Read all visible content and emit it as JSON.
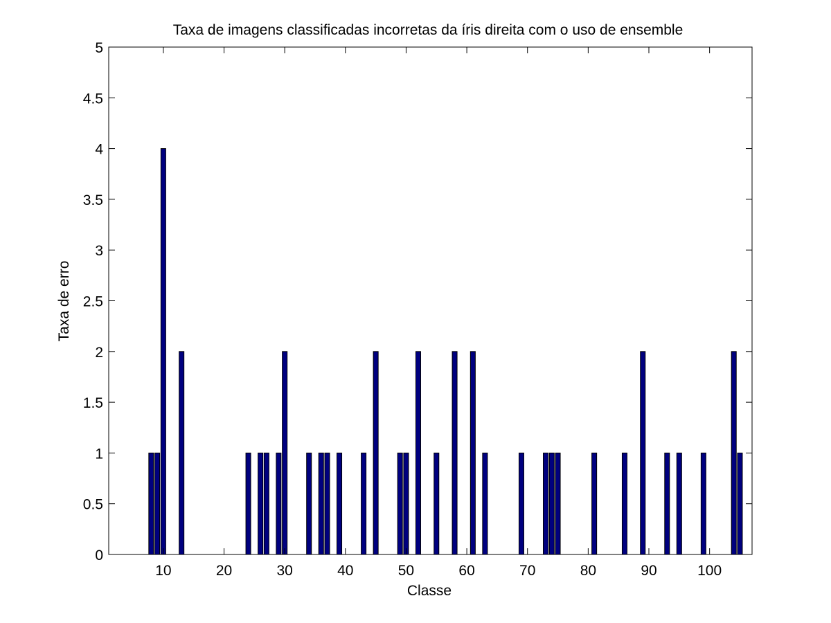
{
  "chart_data": {
    "type": "bar",
    "title": "Taxa de imagens classificadas incorretas da íris direita com o uso de ensemble",
    "xlabel": "Classe",
    "ylabel": "Taxa de erro",
    "xlim": [
      1,
      107
    ],
    "ylim": [
      0,
      5
    ],
    "x_ticks": [
      10,
      20,
      30,
      40,
      50,
      60,
      70,
      80,
      90,
      100
    ],
    "y_ticks": [
      0,
      0.5,
      1,
      1.5,
      2,
      2.5,
      3,
      3.5,
      4,
      4.5,
      5
    ],
    "y_tick_labels": [
      "0",
      "0.5",
      "1",
      "1.5",
      "2",
      "2.5",
      "3",
      "3.5",
      "4",
      "4.5",
      "5"
    ],
    "grid": false,
    "bar_color": "#00007f",
    "x": [
      8,
      9,
      10,
      13,
      24,
      26,
      27,
      29,
      30,
      34,
      36,
      37,
      39,
      43,
      45,
      49,
      50,
      52,
      55,
      58,
      61,
      63,
      69,
      73,
      74,
      75,
      81,
      86,
      89,
      93,
      95,
      99,
      104,
      105
    ],
    "values": [
      1,
      1,
      4,
      2,
      1,
      1,
      1,
      1,
      2,
      1,
      1,
      1,
      1,
      1,
      2,
      1,
      1,
      2,
      1,
      2,
      2,
      1,
      1,
      1,
      1,
      1,
      1,
      1,
      2,
      1,
      1,
      1,
      2,
      1
    ]
  }
}
